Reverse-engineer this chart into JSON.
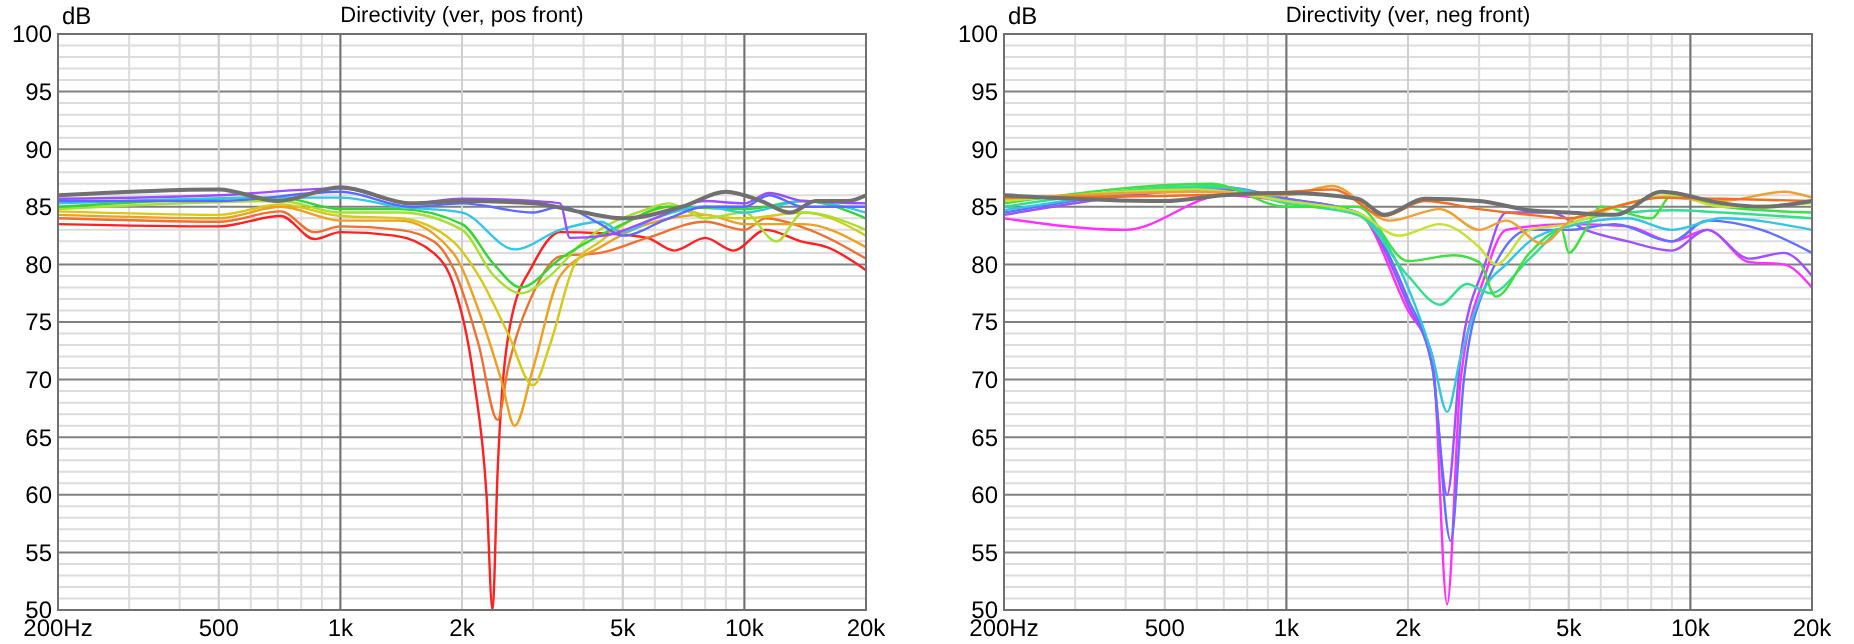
{
  "chart_data": [
    {
      "type": "line",
      "title": "Directivity (ver, pos front)",
      "ylabel": "dB",
      "log": "x",
      "grid": true,
      "xlim": [
        200,
        20000
      ],
      "ylim": [
        50,
        100
      ],
      "xticks": [
        {
          "value": 200,
          "label": "200Hz"
        },
        500,
        {
          "value": 1000,
          "label": "1k"
        },
        {
          "value": 2000,
          "label": "2k"
        },
        {
          "value": 5000,
          "label": "5k"
        },
        {
          "value": 10000,
          "label": "10k"
        },
        {
          "value": 20000,
          "label": "20k"
        }
      ],
      "yticks": [
        50,
        55,
        60,
        65,
        70,
        75,
        80,
        85,
        90,
        95,
        100
      ],
      "series": [
        {
          "color": "#ff2020",
          "x": [
            200,
            500,
            712,
            863,
            1000,
            1360,
            1700,
            1914,
            2140,
            2300,
            2380,
            2450,
            2640,
            3000,
            3500,
            4400,
            5750,
            6700,
            8000,
            9400,
            11300,
            13800,
            16000,
            20000
          ],
          "values": [
            83.5,
            83.3,
            84.2,
            82.2,
            82.8,
            82.5,
            81,
            78,
            70,
            60,
            50,
            62,
            75,
            80,
            82.8,
            82.7,
            82.3,
            81.2,
            82.3,
            81.2,
            83,
            82,
            81.5,
            79.5
          ]
        },
        {
          "color": "#f07030",
          "x": [
            200,
            500,
            712,
            863,
            1000,
            1400,
            1700,
            1914,
            2200,
            2450,
            2600,
            3000,
            3500,
            4400,
            5750,
            8000,
            10000,
            11300,
            14000,
            20000
          ],
          "values": [
            84,
            83.7,
            84.6,
            82.8,
            83.3,
            83,
            82,
            79.5,
            73,
            66.5,
            71,
            77.5,
            80.7,
            81,
            82.3,
            83.7,
            83,
            84,
            83.2,
            80.5
          ]
        },
        {
          "color": "#f0a020",
          "x": [
            200,
            500,
            712,
            1000,
            1400,
            1900,
            2200,
            2500,
            2700,
            3000,
            3500,
            4400,
            5750,
            8000,
            10000,
            14000,
            20000
          ],
          "values": [
            84.3,
            84,
            85,
            83.8,
            83.8,
            81,
            76,
            70,
            66,
            71,
            79,
            81.5,
            83.5,
            84.3,
            83.5,
            83.5,
            81.5
          ]
        },
        {
          "color": "#d8c818",
          "x": [
            200,
            500,
            712,
            1000,
            1400,
            1900,
            2200,
            2600,
            3000,
            3300,
            3800,
            4400,
            5750,
            6500,
            8000,
            10000,
            14000,
            20000
          ],
          "values": [
            84.6,
            84.3,
            85.2,
            84.2,
            84,
            82,
            79,
            74,
            69.5,
            73,
            80,
            82,
            84.5,
            85,
            84.3,
            84,
            84.5,
            82.5
          ]
        },
        {
          "color": "#a8e030",
          "x": [
            200,
            712,
            1000,
            1400,
            2000,
            2400,
            2800,
            3300,
            4000,
            5750,
            6500,
            8000,
            10000,
            12000,
            14000,
            20000
          ],
          "values": [
            84.8,
            85.5,
            84.5,
            84.5,
            83,
            79,
            77.5,
            79,
            82,
            84.8,
            85.3,
            84,
            84.5,
            82,
            84.5,
            83
          ]
        },
        {
          "color": "#30d830",
          "x": [
            200,
            712,
            1000,
            1400,
            2000,
            2400,
            2800,
            3500,
            5000,
            6500,
            10000,
            14000,
            20000
          ],
          "values": [
            85,
            85.8,
            84.8,
            84.8,
            83.5,
            80,
            78,
            80.5,
            83.5,
            85,
            84.8,
            85.5,
            84
          ]
        },
        {
          "color": "#30c8e6",
          "x": [
            200,
            712,
            1000,
            1400,
            2000,
            2700,
            3500,
            4400,
            5000,
            6000,
            8000,
            10000,
            14000,
            20000
          ],
          "values": [
            85.3,
            85.8,
            85.8,
            85,
            84.5,
            81.3,
            83,
            83.7,
            82.8,
            84,
            85,
            84.5,
            85.5,
            84.5
          ]
        },
        {
          "color": "#5a6aff",
          "x": [
            200,
            500,
            1000,
            1500,
            2000,
            3000,
            3500,
            4400,
            5000,
            6500,
            8000,
            10000,
            11500,
            14000,
            20000
          ],
          "values": [
            85.5,
            85.5,
            86.3,
            85,
            85.3,
            84.5,
            85,
            83.5,
            82.5,
            84,
            85,
            85,
            86,
            85,
            85
          ]
        },
        {
          "color": "#9b4dff",
          "x": [
            200,
            500,
            1000,
            1500,
            2000,
            3000,
            3500,
            3700,
            4500,
            6000,
            8000,
            10000,
            11500,
            14000,
            20000
          ],
          "values": [
            85.7,
            86,
            86.6,
            85.3,
            85.7,
            85.5,
            85.3,
            82.3,
            82.5,
            84,
            85.5,
            85.3,
            86.2,
            85.5,
            85.3
          ]
        },
        {
          "color": "#707070",
          "x": [
            200,
            500,
            700,
            1000,
            1500,
            2000,
            3000,
            4000,
            5000,
            7000,
            9000,
            11000,
            13000,
            15000,
            18000,
            20000
          ],
          "values": [
            86,
            86.5,
            85.5,
            86.7,
            85.3,
            85.5,
            85.3,
            84.5,
            84,
            85,
            86.3,
            85.5,
            84.5,
            85.5,
            85.5,
            86
          ]
        }
      ]
    },
    {
      "type": "line",
      "title": "Directivity (ver, neg front)",
      "ylabel": "dB",
      "log": "x",
      "grid": true,
      "xlim": [
        200,
        20000
      ],
      "ylim": [
        50,
        100
      ],
      "xticks": [
        {
          "value": 200,
          "label": "200Hz"
        },
        500,
        {
          "value": 1000,
          "label": "1k"
        },
        {
          "value": 2000,
          "label": "2k"
        },
        {
          "value": 5000,
          "label": "5k"
        },
        {
          "value": 10000,
          "label": "10k"
        },
        {
          "value": 20000,
          "label": "20k"
        }
      ],
      "yticks": [
        50,
        55,
        60,
        65,
        70,
        75,
        80,
        85,
        90,
        95,
        100
      ],
      "series": [
        {
          "color": "#ff30ff",
          "x": [
            200,
            400,
            700,
            1000,
            1500,
            2000,
            2300,
            2500,
            2700,
            3100,
            3500,
            5000,
            7000,
            9000,
            11000,
            14000,
            17000,
            20000
          ],
          "values": [
            84,
            83,
            86,
            85.5,
            84.5,
            76,
            72,
            50.5,
            70,
            79,
            83,
            83.5,
            83.3,
            82,
            83,
            80.2,
            80,
            78
          ]
        },
        {
          "color": "#a050ff",
          "x": [
            200,
            700,
            1000,
            1500,
            2000,
            2300,
            2500,
            2700,
            3100,
            3500,
            4500,
            5500,
            7000,
            9000,
            11000,
            14000,
            17000,
            20000
          ],
          "values": [
            84.3,
            86.5,
            85.7,
            84.5,
            76.5,
            71,
            60,
            72,
            80,
            84.5,
            84.5,
            83,
            82,
            81.2,
            83,
            80.5,
            81,
            79
          ]
        },
        {
          "color": "#6070ff",
          "x": [
            200,
            700,
            1000,
            1500,
            2000,
            2300,
            2550,
            2750,
            3100,
            4000,
            5000,
            6500,
            9000,
            11000,
            15000,
            20000
          ],
          "values": [
            84.5,
            86.7,
            85.7,
            84.5,
            77,
            71,
            56,
            70,
            78,
            83,
            83,
            83.5,
            82,
            83.8,
            83,
            81
          ]
        },
        {
          "color": "#30c8e0",
          "x": [
            200,
            700,
            1000,
            1500,
            2000,
            2300,
            2500,
            2700,
            3100,
            3500,
            4000,
            5000,
            7000,
            9000,
            12000,
            20000
          ],
          "values": [
            84.7,
            86.7,
            85.5,
            84.5,
            78,
            72,
            67.2,
            72,
            78,
            80,
            82,
            83.3,
            84,
            83,
            84,
            83
          ]
        },
        {
          "color": "#30e090",
          "x": [
            200,
            650,
            1000,
            1500,
            2000,
            2400,
            2800,
            3200,
            4000,
            5000,
            7000,
            9000,
            12000,
            20000
          ],
          "values": [
            85,
            86.8,
            85.3,
            84.3,
            79,
            76.5,
            78.3,
            77.5,
            80.5,
            83.5,
            84.5,
            84.7,
            84.5,
            84
          ]
        },
        {
          "color": "#40e040",
          "x": [
            200,
            650,
            1000,
            1500,
            2000,
            2600,
            3000,
            3300,
            4000,
            4800,
            5000,
            5500,
            6000,
            8000,
            9000,
            12000,
            20000
          ],
          "values": [
            85.3,
            87,
            85,
            85,
            80.3,
            80.8,
            80.2,
            77.2,
            81,
            83,
            81,
            83,
            85,
            84,
            86,
            85,
            84.5
          ]
        },
        {
          "color": "#c8e030",
          "x": [
            200,
            600,
            1000,
            1500,
            1900,
            2400,
            3000,
            3300,
            4000,
            5000,
            7000,
            9000,
            12000,
            20000
          ],
          "values": [
            85.5,
            86.5,
            85.5,
            84.5,
            82.5,
            83.5,
            81.5,
            80,
            83,
            83.5,
            85.3,
            86,
            85,
            85.3
          ]
        },
        {
          "color": "#f0a030",
          "x": [
            200,
            600,
            1000,
            1300,
            1800,
            2400,
            3000,
            3500,
            4300,
            5000,
            6500,
            8500,
            12000,
            17000,
            20000
          ],
          "values": [
            85.7,
            86.3,
            86,
            86.8,
            83.8,
            84.8,
            83,
            83.8,
            81.8,
            83.7,
            85,
            85.8,
            85.5,
            86.3,
            85.8
          ]
        },
        {
          "color": "#f07020",
          "x": [
            200,
            600,
            1000,
            1300,
            1750,
            2200,
            3000,
            4000,
            5000,
            6500,
            8500,
            12000,
            20000
          ],
          "values": [
            85.8,
            86,
            86.3,
            86.5,
            84.2,
            85.5,
            84.8,
            84.3,
            84,
            85,
            85.8,
            85.7,
            85.5
          ]
        },
        {
          "color": "#707070",
          "x": [
            200,
            500,
            700,
            1000,
            1500,
            1750,
            2200,
            3000,
            4000,
            5000,
            6500,
            8500,
            12000,
            15000,
            20000
          ],
          "values": [
            86,
            85.5,
            86,
            86.2,
            85.7,
            84.3,
            85.7,
            85.5,
            84.7,
            84.5,
            84.3,
            86.3,
            85.3,
            85,
            85.5
          ]
        }
      ]
    }
  ]
}
